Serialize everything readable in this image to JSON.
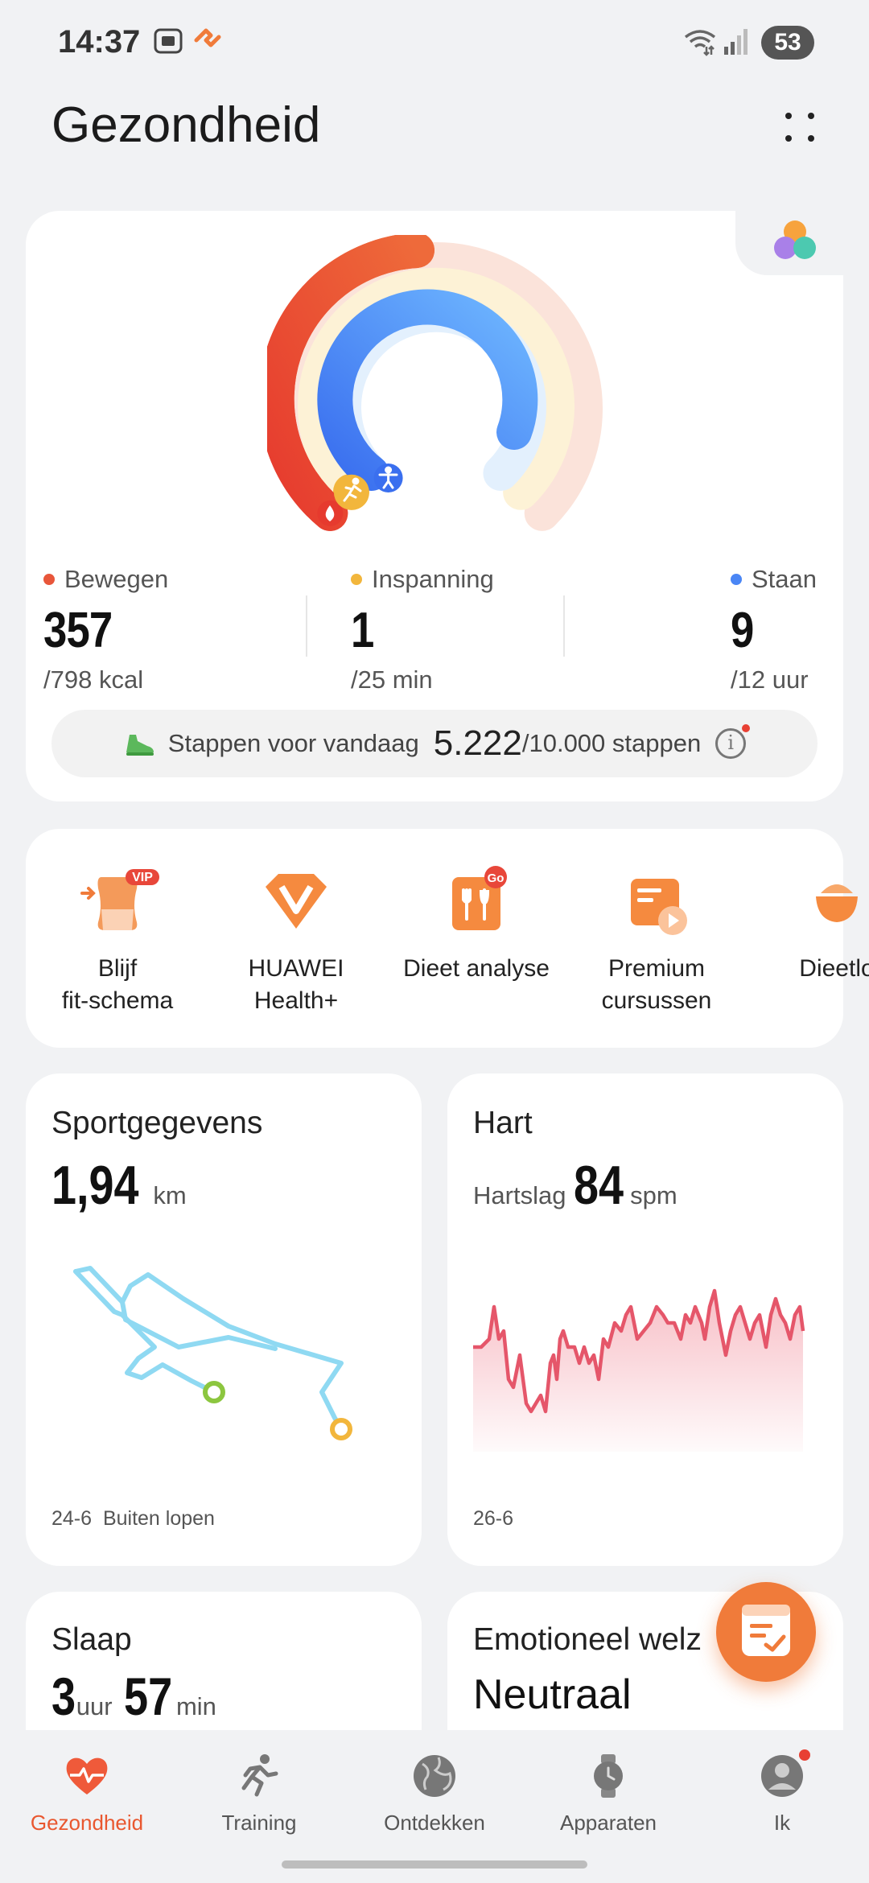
{
  "status_bar": {
    "time": "14:37",
    "battery": "53"
  },
  "header": {
    "title": "Gezondheid"
  },
  "activity": {
    "stats": [
      {
        "label": "Bewegen",
        "value": "357",
        "goal": "/798 kcal",
        "color": "#e8563a",
        "progress": 0.45
      },
      {
        "label": "Inspanning",
        "value": "1",
        "goal": "/25 min",
        "color": "#f2b63c",
        "progress": 0.04
      },
      {
        "label": "Staan",
        "value": "9",
        "goal": "/12 uur",
        "color": "#4a86f5",
        "progress": 0.75
      }
    ],
    "steps": {
      "label": "Stappen voor vandaag",
      "value": "5.222",
      "goal": "/10.000 stappen"
    }
  },
  "shortcuts": [
    {
      "label": "Blijf\nfit-schema",
      "badge": "VIP",
      "icon": "fit-plan-icon"
    },
    {
      "label": "HUAWEI\nHealth+",
      "icon": "health-plus-icon"
    },
    {
      "label": "Dieet analyse",
      "badge": "Go",
      "icon": "diet-analysis-icon"
    },
    {
      "label": "Premium\ncursussen",
      "icon": "premium-courses-icon"
    },
    {
      "label": "Dieetlo",
      "icon": "diet-log-icon"
    }
  ],
  "sport": {
    "title": "Sportgegevens",
    "value": "1,94",
    "unit": "km",
    "date": "24-6",
    "type": "Buiten lopen"
  },
  "heart": {
    "title": "Hart",
    "label": "Hartslag",
    "value": "84",
    "unit": "spm",
    "date": "26-6"
  },
  "sleep": {
    "title": "Slaap",
    "hours": "3",
    "hours_unit": "uur",
    "minutes": "57",
    "minutes_unit": "min"
  },
  "emotion": {
    "title": "Emotioneel welz",
    "value": "Neutraal"
  },
  "nav": [
    {
      "label": "Gezondheid",
      "icon": "heart-pulse-icon",
      "active": true
    },
    {
      "label": "Training",
      "icon": "running-icon",
      "active": false
    },
    {
      "label": "Ontdekken",
      "icon": "globe-icon",
      "active": false
    },
    {
      "label": "Apparaten",
      "icon": "watch-icon",
      "active": false
    },
    {
      "label": "Ik",
      "icon": "profile-icon",
      "active": false
    }
  ]
}
